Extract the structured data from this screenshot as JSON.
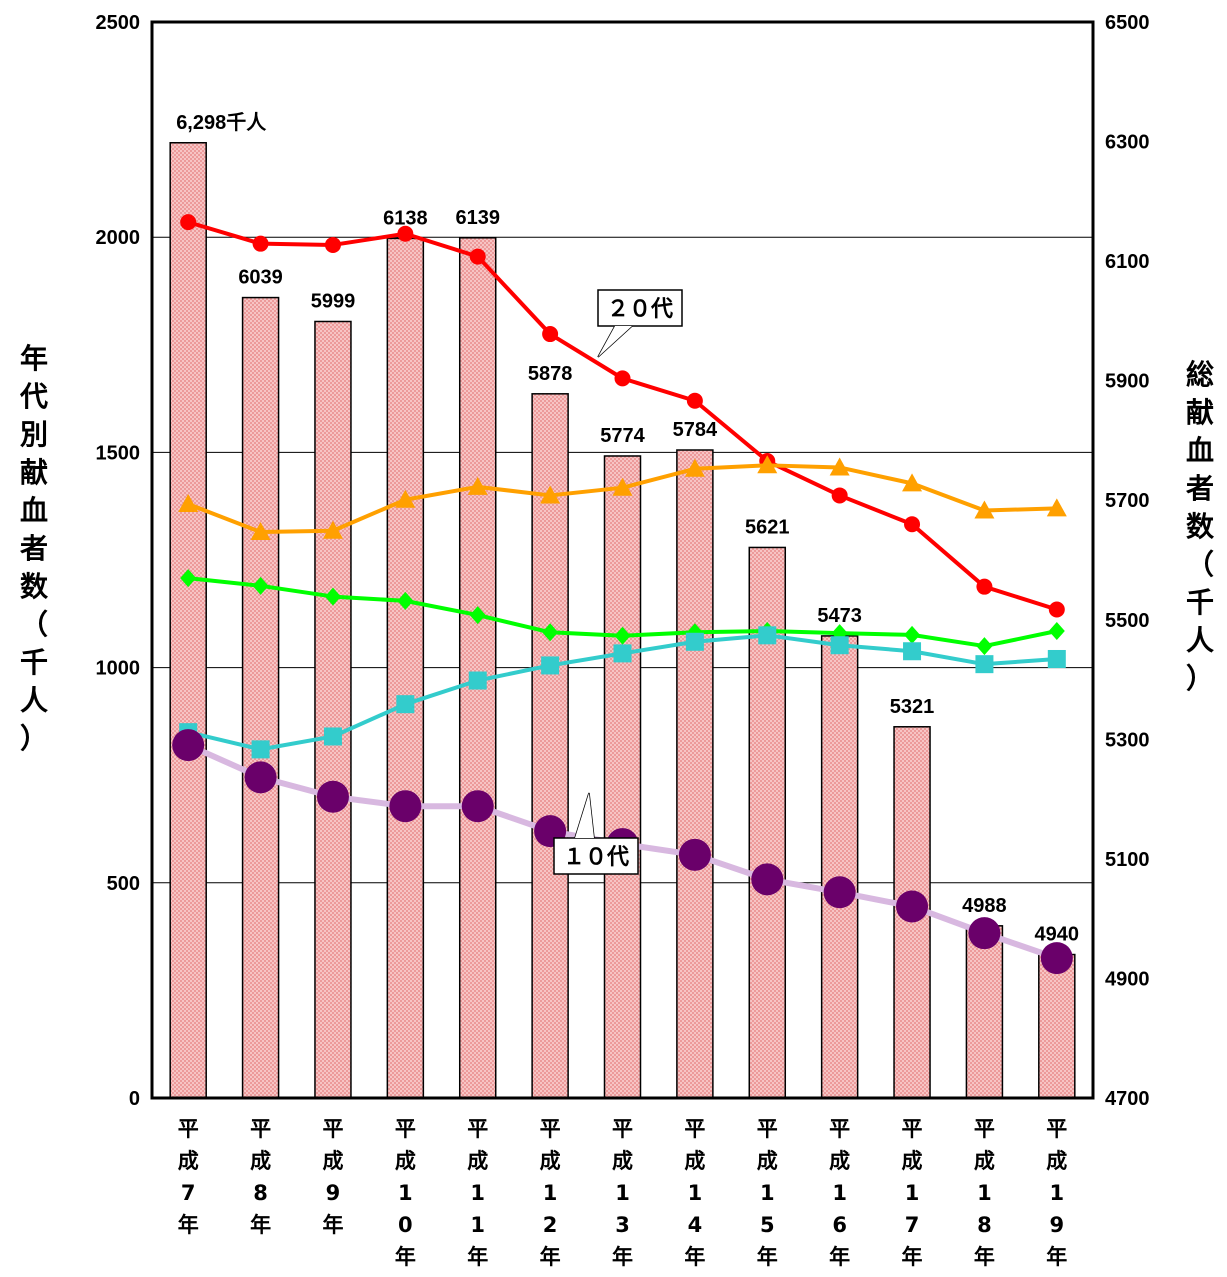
{
  "chart_data": {
    "type": "bar",
    "categories": [
      "平成7年",
      "平成8年",
      "平成9年",
      "平成10年",
      "平成11年",
      "平成12年",
      "平成13年",
      "平成14年",
      "平成15年",
      "平成16年",
      "平成17年",
      "平成18年",
      "平成19年"
    ],
    "category_labels": [
      [
        "平",
        "成",
        "7",
        "年"
      ],
      [
        "平",
        "成",
        "8",
        "年"
      ],
      [
        "平",
        "成",
        "9",
        "年"
      ],
      [
        "平",
        "成",
        "1",
        "0",
        "年"
      ],
      [
        "平",
        "成",
        "1",
        "1",
        "年"
      ],
      [
        "平",
        "成",
        "1",
        "2",
        "年"
      ],
      [
        "平",
        "成",
        "1",
        "3",
        "年"
      ],
      [
        "平",
        "成",
        "1",
        "4",
        "年"
      ],
      [
        "平",
        "成",
        "1",
        "5",
        "年"
      ],
      [
        "平",
        "成",
        "1",
        "6",
        "年"
      ],
      [
        "平",
        "成",
        "1",
        "7",
        "年"
      ],
      [
        "平",
        "成",
        "1",
        "8",
        "年"
      ],
      [
        "平",
        "成",
        "1",
        "9",
        "年"
      ]
    ],
    "bar_series": {
      "axis": "right",
      "values": [
        6298,
        6039,
        5999,
        6138,
        6139,
        5878,
        5774,
        5784,
        5621,
        5473,
        5321,
        4988,
        4940
      ],
      "labels": [
        "6,298千人",
        "6039",
        "5999",
        "6138",
        "6139",
        "5878",
        "5774",
        "5784",
        "5621",
        "5473",
        "5321",
        "4988",
        "4940"
      ],
      "color": "#f4b6b6",
      "edge_color": "#000000"
    },
    "line_series": [
      {
        "id": "s20",
        "color": "#ff0000",
        "marker": "circle",
        "values": [
          2035,
          1985,
          1982,
          2008,
          1955,
          1775,
          1672,
          1620,
          1480,
          1400,
          1333,
          1188,
          1135
        ]
      },
      {
        "id": "s30",
        "color": "#ffa000",
        "marker": "triangle",
        "values": [
          1380,
          1315,
          1318,
          1390,
          1420,
          1400,
          1418,
          1462,
          1470,
          1465,
          1428,
          1365,
          1370
        ]
      },
      {
        "id": "s40",
        "color": "#00ff00",
        "marker": "diamond",
        "values": [
          1208,
          1190,
          1165,
          1155,
          1122,
          1082,
          1074,
          1082,
          1085,
          1080,
          1076,
          1050,
          1085
        ]
      },
      {
        "id": "s50",
        "color": "#33cccc",
        "marker": "square",
        "values": [
          850,
          810,
          840,
          915,
          970,
          1005,
          1033,
          1060,
          1075,
          1052,
          1038,
          1008,
          1020
        ]
      },
      {
        "id": "s10",
        "color": "#6a006a",
        "line_color": "#d8b8e0",
        "marker": "big-circle",
        "values": [
          820,
          745,
          700,
          678,
          678,
          620,
          590,
          565,
          508,
          478,
          445,
          383,
          325
        ]
      }
    ],
    "y_left": {
      "label": [
        "年",
        "代",
        "別",
        "献",
        "血",
        "者",
        "数",
        "（",
        "千",
        "人",
        "）"
      ],
      "min": 0,
      "max": 2500,
      "ticks": [
        0,
        500,
        1000,
        1500,
        2000,
        2500
      ]
    },
    "y_right": {
      "label": [
        "総",
        "献",
        "血",
        "者",
        "数",
        "（",
        "千",
        "人",
        "）"
      ],
      "min": 4700,
      "max": 6500,
      "ticks": [
        4700,
        4900,
        5100,
        5300,
        5500,
        5700,
        5900,
        6100,
        6300,
        6500
      ]
    },
    "gridlines": [
      500,
      1000,
      1500,
      2000
    ],
    "annotations": [
      {
        "text": "２０代",
        "series": "s20"
      },
      {
        "text": "１０代",
        "series": "s10"
      }
    ]
  }
}
